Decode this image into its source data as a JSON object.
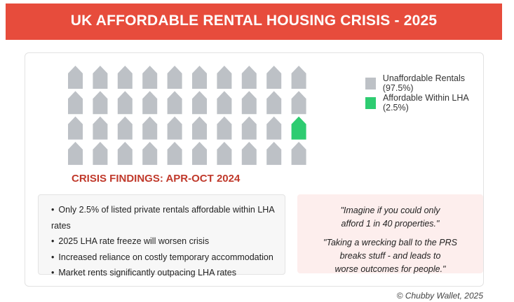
{
  "header": {
    "title": "UK AFFORDABLE RENTAL HOUSING CRISIS - 2025"
  },
  "colors": {
    "banner": "#e74c3c",
    "unaffordable": "#bdc1c6",
    "affordable": "#2ecc71",
    "findings_title": "#c0392b",
    "quote_bg": "#fdeeed"
  },
  "chart_data": {
    "type": "pictogram",
    "units_total": 40,
    "grid": {
      "rows": 4,
      "columns": 10
    },
    "series": [
      {
        "name": "Unaffordable Rentals (97.5%)",
        "percent": 97.5,
        "units": 39,
        "color": "#bdc1c6"
      },
      {
        "name": "Affordable Within LHA (2.5%)",
        "percent": 2.5,
        "units": 1,
        "color": "#2ecc71"
      }
    ],
    "highlighted_unit": {
      "row": 3,
      "column": 10
    },
    "legend_position": "right"
  },
  "findings": {
    "title": "CRISIS FINDINGS: APR-OCT 2024",
    "items": [
      "Only 2.5% of listed private rentals affordable within LHA rates",
      "2025 LHA rate freeze will worsen crisis",
      "Increased reliance on costly temporary accommodation",
      "Market rents significantly outpacing LHA rates"
    ]
  },
  "quotes": {
    "q1": [
      "\"Imagine if you could only",
      "afford 1 in 40 properties.\""
    ],
    "q2": [
      "\"Taking a wrecking ball to the PRS",
      "breaks stuff - and leads to",
      "worse outcomes for people.\""
    ]
  },
  "footer": {
    "credit": "© Chubby Wallet, 2025"
  }
}
